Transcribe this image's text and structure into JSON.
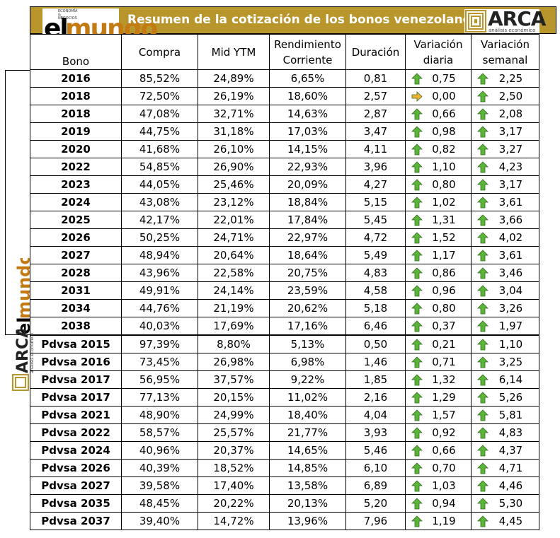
{
  "header": {
    "title": "Resumen de la cotización de los bonos venezolanos",
    "logo_left": {
      "el": "el",
      "mundo": "mundo",
      "tagline": "ECONOMÍA & NEGOCIOS"
    },
    "logo_right": {
      "name": "ARCA",
      "subtitle": "análisis económico"
    }
  },
  "columns": [
    "Bono",
    "Compra",
    "Mid YTM",
    "Rendimiento Corriente",
    "Duración",
    "Variación diaria",
    "Variación semanal"
  ],
  "icons": {
    "up": "up-arrow-icon",
    "flat": "right-arrow-icon"
  },
  "colors": {
    "header_bg": "#b8962c",
    "up_arrow": "#5bb539",
    "flat_arrow": "#f2b234"
  },
  "rows": [
    {
      "bono": "2016",
      "compra": "85,52%",
      "mid_ytm": "24,89%",
      "rend": "6,65%",
      "dur": "0,81",
      "var_d": "0,75",
      "dir_d": "up",
      "var_s": "2,25",
      "dir_s": "up"
    },
    {
      "bono": "2018",
      "compra": "72,50%",
      "mid_ytm": "26,19%",
      "rend": "18,60%",
      "dur": "2,57",
      "var_d": "0,00",
      "dir_d": "flat",
      "var_s": "2,50",
      "dir_s": "up"
    },
    {
      "bono": "2018",
      "compra": "47,08%",
      "mid_ytm": "32,71%",
      "rend": "14,63%",
      "dur": "2,87",
      "var_d": "0,66",
      "dir_d": "up",
      "var_s": "2,08",
      "dir_s": "up"
    },
    {
      "bono": "2019",
      "compra": "44,75%",
      "mid_ytm": "31,18%",
      "rend": "17,03%",
      "dur": "3,47",
      "var_d": "0,98",
      "dir_d": "up",
      "var_s": "3,17",
      "dir_s": "up"
    },
    {
      "bono": "2020",
      "compra": "41,68%",
      "mid_ytm": "26,10%",
      "rend": "14,15%",
      "dur": "4,11",
      "var_d": "0,82",
      "dir_d": "up",
      "var_s": "3,27",
      "dir_s": "up"
    },
    {
      "bono": "2022",
      "compra": "54,85%",
      "mid_ytm": "26,90%",
      "rend": "22,93%",
      "dur": "3,96",
      "var_d": "1,10",
      "dir_d": "up",
      "var_s": "4,23",
      "dir_s": "up"
    },
    {
      "bono": "2023",
      "compra": "44,05%",
      "mid_ytm": "25,46%",
      "rend": "20,09%",
      "dur": "4,27",
      "var_d": "0,80",
      "dir_d": "up",
      "var_s": "3,17",
      "dir_s": "up"
    },
    {
      "bono": "2024",
      "compra": "43,08%",
      "mid_ytm": "23,12%",
      "rend": "18,84%",
      "dur": "5,15",
      "var_d": "1,02",
      "dir_d": "up",
      "var_s": "3,61",
      "dir_s": "up"
    },
    {
      "bono": "2025",
      "compra": "42,17%",
      "mid_ytm": "22,01%",
      "rend": "17,84%",
      "dur": "5,45",
      "var_d": "1,31",
      "dir_d": "up",
      "var_s": "3,66",
      "dir_s": "up"
    },
    {
      "bono": "2026",
      "compra": "50,25%",
      "mid_ytm": "24,71%",
      "rend": "22,97%",
      "dur": "4,72",
      "var_d": "1,52",
      "dir_d": "up",
      "var_s": "4,02",
      "dir_s": "up"
    },
    {
      "bono": "2027",
      "compra": "48,94%",
      "mid_ytm": "20,64%",
      "rend": "18,64%",
      "dur": "5,49",
      "var_d": "1,17",
      "dir_d": "up",
      "var_s": "3,61",
      "dir_s": "up"
    },
    {
      "bono": "2028",
      "compra": "43,96%",
      "mid_ytm": "22,58%",
      "rend": "20,75%",
      "dur": "4,83",
      "var_d": "0,86",
      "dir_d": "up",
      "var_s": "3,46",
      "dir_s": "up"
    },
    {
      "bono": "2031",
      "compra": "49,91%",
      "mid_ytm": "24,14%",
      "rend": "23,59%",
      "dur": "4,58",
      "var_d": "0,96",
      "dir_d": "up",
      "var_s": "3,04",
      "dir_s": "up"
    },
    {
      "bono": "2034",
      "compra": "44,76%",
      "mid_ytm": "21,19%",
      "rend": "20,62%",
      "dur": "5,18",
      "var_d": "0,80",
      "dir_d": "up",
      "var_s": "3,26",
      "dir_s": "up"
    },
    {
      "bono": "2038",
      "compra": "40,03%",
      "mid_ytm": "17,69%",
      "rend": "17,16%",
      "dur": "6,46",
      "var_d": "0,37",
      "dir_d": "up",
      "var_s": "1,97",
      "dir_s": "up"
    },
    {
      "bono": "Pdvsa 2015",
      "compra": "97,39%",
      "mid_ytm": "8,80%",
      "rend": "5,13%",
      "dur": "0,50",
      "var_d": "0,21",
      "dir_d": "up",
      "var_s": "1,10",
      "dir_s": "up"
    },
    {
      "bono": "Pdvsa 2016",
      "compra": "73,45%",
      "mid_ytm": "26,98%",
      "rend": "6,98%",
      "dur": "1,46",
      "var_d": "0,71",
      "dir_d": "up",
      "var_s": "3,25",
      "dir_s": "up"
    },
    {
      "bono": "Pdvsa 2017",
      "compra": "56,95%",
      "mid_ytm": "37,57%",
      "rend": "9,22%",
      "dur": "1,85",
      "var_d": "1,32",
      "dir_d": "up",
      "var_s": "6,14",
      "dir_s": "up"
    },
    {
      "bono": "Pdvsa 2017",
      "compra": "77,13%",
      "mid_ytm": "20,15%",
      "rend": "11,02%",
      "dur": "2,16",
      "var_d": "1,29",
      "dir_d": "up",
      "var_s": "5,26",
      "dir_s": "up"
    },
    {
      "bono": "Pdvsa 2021",
      "compra": "48,90%",
      "mid_ytm": "24,99%",
      "rend": "18,40%",
      "dur": "4,04",
      "var_d": "1,57",
      "dir_d": "up",
      "var_s": "5,81",
      "dir_s": "up"
    },
    {
      "bono": "Pdvsa 2022",
      "compra": "58,57%",
      "mid_ytm": "25,57%",
      "rend": "21,77%",
      "dur": "3,93",
      "var_d": "0,92",
      "dir_d": "up",
      "var_s": "4,83",
      "dir_s": "up"
    },
    {
      "bono": "Pdvsa 2024",
      "compra": "40,96%",
      "mid_ytm": "20,37%",
      "rend": "14,65%",
      "dur": "5,46",
      "var_d": "0,66",
      "dir_d": "up",
      "var_s": "4,37",
      "dir_s": "up"
    },
    {
      "bono": "Pdvsa 2026",
      "compra": "40,39%",
      "mid_ytm": "18,52%",
      "rend": "14,85%",
      "dur": "6,10",
      "var_d": "0,70",
      "dir_d": "up",
      "var_s": "4,71",
      "dir_s": "up"
    },
    {
      "bono": "Pdvsa 2027",
      "compra": "39,58%",
      "mid_ytm": "17,40%",
      "rend": "13,58%",
      "dur": "6,89",
      "var_d": "1,03",
      "dir_d": "up",
      "var_s": "4,46",
      "dir_s": "up"
    },
    {
      "bono": "Pdvsa 2035",
      "compra": "48,45%",
      "mid_ytm": "20,22%",
      "rend": "20,13%",
      "dur": "5,20",
      "var_d": "0,94",
      "dir_d": "up",
      "var_s": "5,30",
      "dir_s": "up"
    },
    {
      "bono": "Pdvsa 2037",
      "compra": "39,40%",
      "mid_ytm": "14,72%",
      "rend": "13,96%",
      "dur": "7,96",
      "var_d": "1,19",
      "dir_d": "up",
      "var_s": "4,45",
      "dir_s": "up"
    }
  ]
}
